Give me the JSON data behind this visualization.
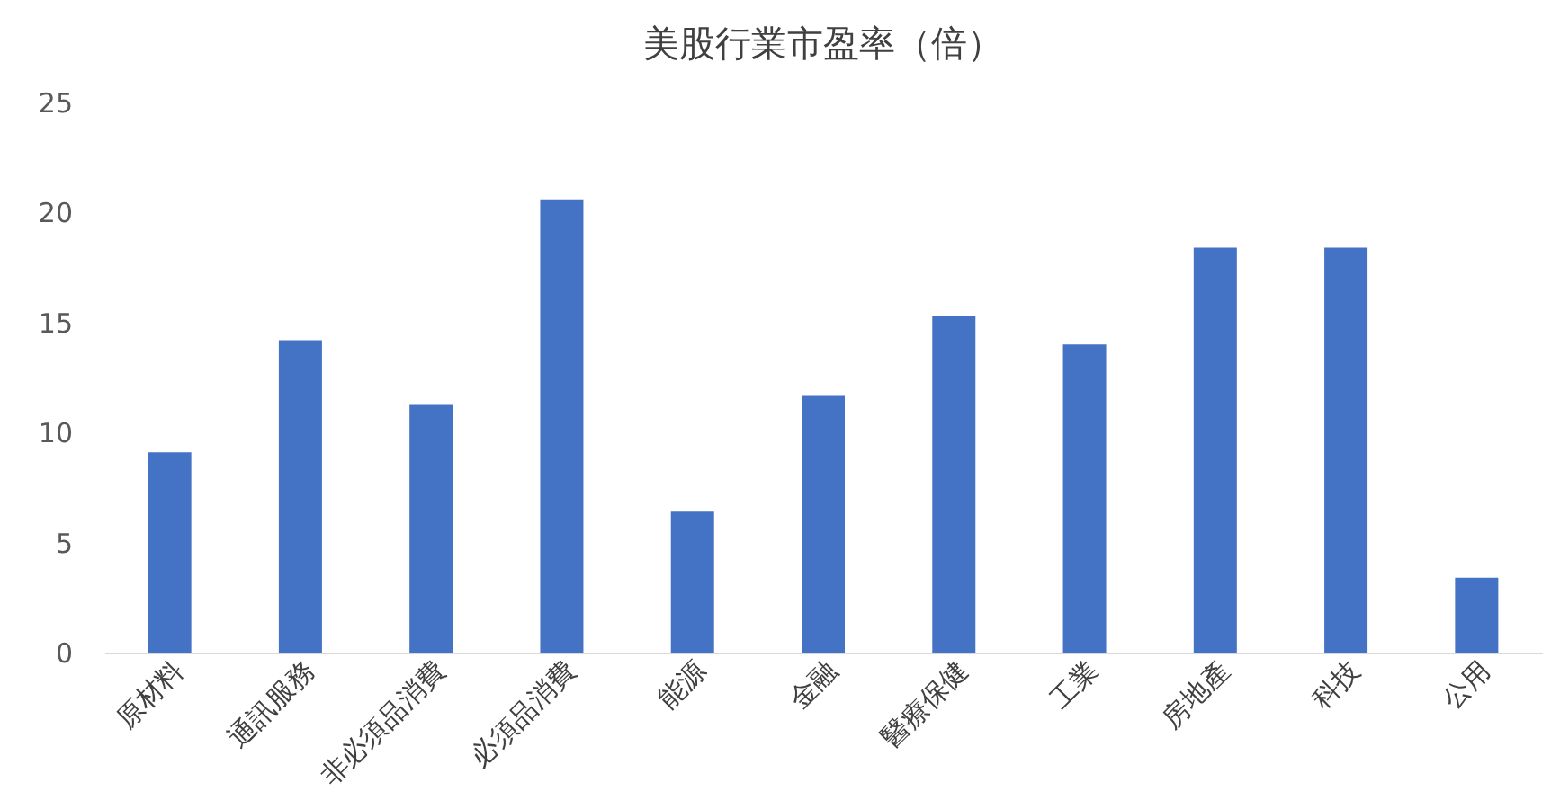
{
  "chart_data": {
    "type": "bar",
    "title": "美股行業市盈率（倍）",
    "categories": [
      "原材料",
      "通訊服務",
      "非必須品消費",
      "必須品消費",
      "能源",
      "金融",
      "醫療保健",
      "工業",
      "房地產",
      "科技",
      "公用"
    ],
    "values": [
      9.1,
      14.2,
      11.3,
      20.6,
      6.4,
      11.7,
      15.3,
      14.0,
      18.4,
      18.4,
      3.4
    ],
    "color": "#4472c4",
    "ylim": [
      0,
      25
    ],
    "yticks": [
      0,
      5,
      10,
      15,
      20,
      25
    ],
    "grid": false
  }
}
